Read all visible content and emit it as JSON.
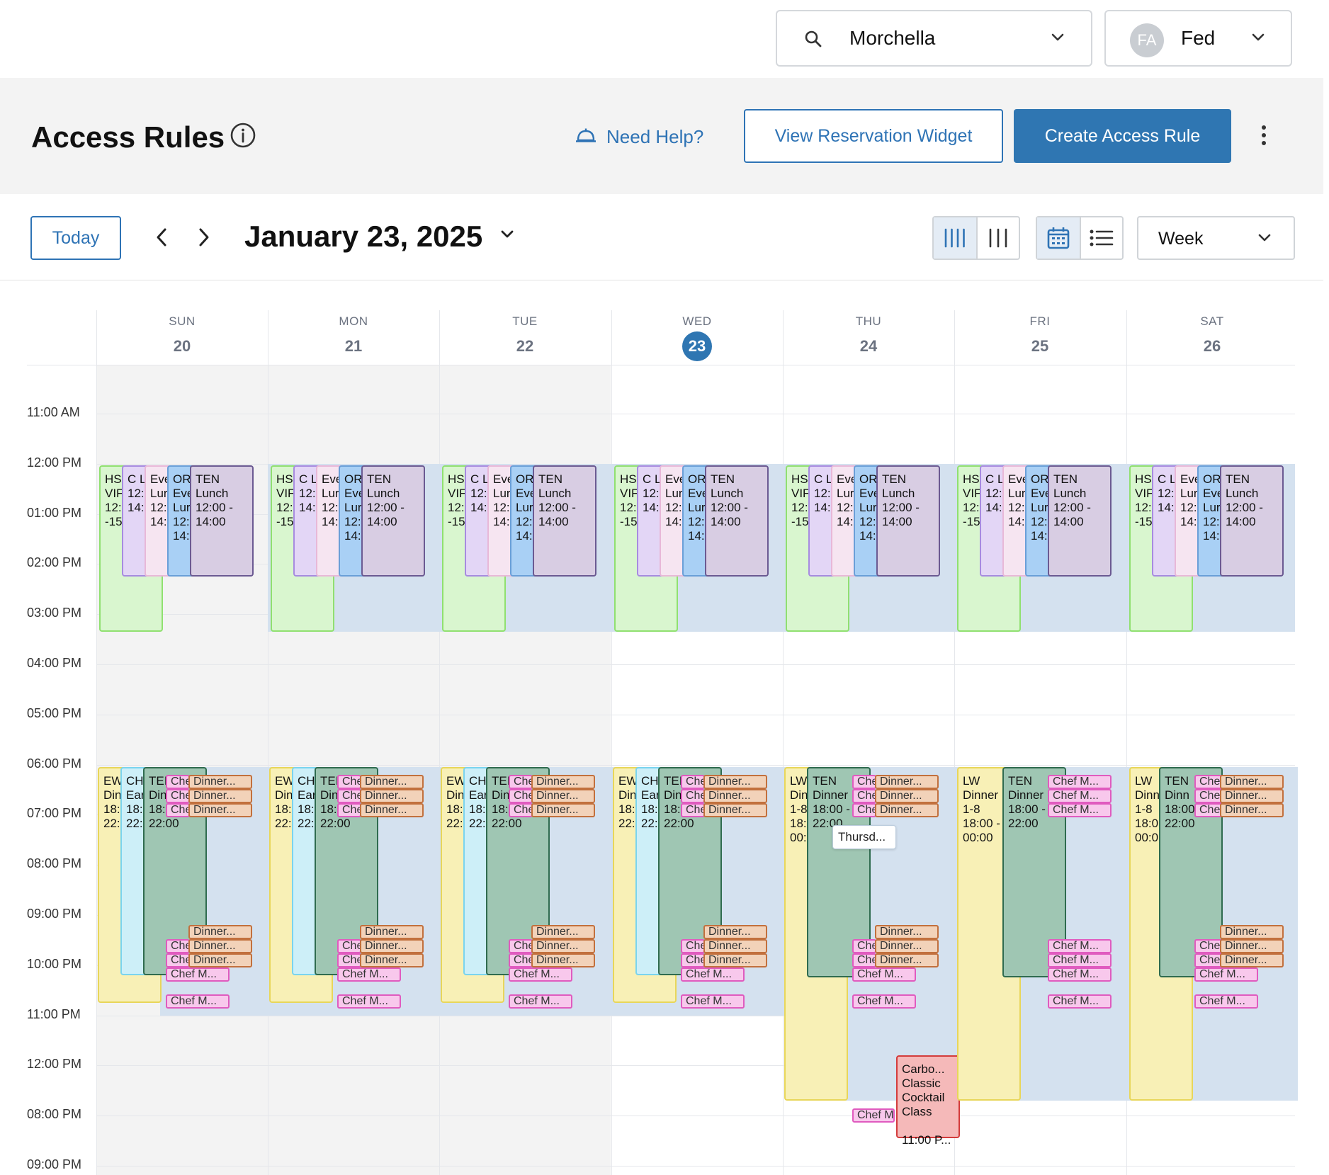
{
  "topbar": {
    "venue_name": "Morchella",
    "user_initials": "FA",
    "user_name": "Fed"
  },
  "header": {
    "title": "Access Rules",
    "help_label": "Need Help?",
    "view_widget_label": "View Reservation Widget",
    "create_rule_label": "Create Access Rule"
  },
  "toolbar": {
    "today_label": "Today",
    "date_title": "January 23, 2025",
    "view_mode": "Week"
  },
  "days": [
    {
      "name": "SUN",
      "date": "20"
    },
    {
      "name": "MON",
      "date": "21"
    },
    {
      "name": "TUE",
      "date": "22"
    },
    {
      "name": "WED",
      "date": "23",
      "current": true
    },
    {
      "name": "THU",
      "date": "24"
    },
    {
      "name": "FRI",
      "date": "25"
    },
    {
      "name": "SAT",
      "date": "26"
    }
  ],
  "time_labels": [
    "11:00 AM",
    "12:00 PM",
    "01:00 PM",
    "02:00 PM",
    "03:00 PM",
    "04:00 PM",
    "05:00 PM",
    "06:00 PM",
    "07:00 PM",
    "08:00 PM",
    "09:00 PM",
    "10:00 PM",
    "11:00 PM",
    "12:00 PM",
    "08:00 PM",
    "09:00 PM"
  ],
  "lunch_events": {
    "hs": "HS\nVIF\n12:\n-15",
    "cl": "C L\n12:\n14:",
    "eve": "Eve\nLur\n12:\n14:",
    "or": "OR\nEve\nLur\n12:\n14:",
    "ten": "TEN\nLunch\n12:00 -\n14:00"
  },
  "dinner_events": {
    "ew": "EW\nDin\n18:\n22:",
    "ch": "CH\nEar\n18:\n22:",
    "ten": "TEI\nDin\n18:00 -\n22:00",
    "thu_lw": "LW\nDin\n1-8\n18:\n00:",
    "thu_ten": "TEN\nDinner\n18:00 -\n22:00",
    "fri_lw": "LW\nDinner\n1-8\n18:00 -\n00:00",
    "fri_ten": "TEN\nDinner\n18:00 -\n22:00",
    "sat_lw": "LW\nDinn\n1-8\n18:0\n00:0",
    "sat_ten": "TEN\nDinn\n18:00 -\n22:00",
    "class": "Carbo...\nClassic\nCocktail\nClass\n\n11:00 P..."
  },
  "chips": {
    "chef_short": "Che",
    "chef_full": "Chef M...",
    "dinner": "Dinner...",
    "chef_m": "Chef M"
  },
  "tooltip": "Thursd...",
  "colors": {
    "accent": "#2f76b2",
    "lane": "#d4e1ef",
    "green": "#d9f6cf",
    "purple": "#e3d6f6",
    "pink": "#f6e5f1",
    "blue": "#a9d0f5",
    "mauve": "#d8cde3",
    "yellow": "#f8f0b6",
    "cyan": "#cdeff8",
    "teal": "#9fc6b3",
    "orange": "#f2d2b9",
    "magenta": "#f8c8ec",
    "red": "#f5b9b9"
  }
}
